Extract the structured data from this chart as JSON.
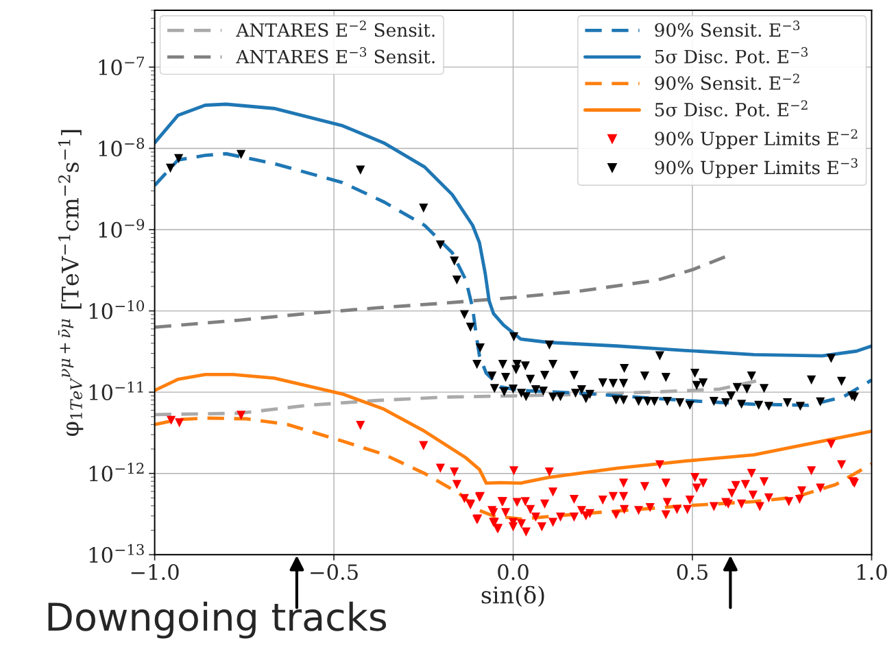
{
  "chart_data": {
    "type": "line",
    "xlabel": "sin(δ)",
    "ylabel": "φ$_{1TeV}$$^{νμ+ν̄μ}$ [TeV$^{−1}$cm$^{−2}$s$^{−1}$]",
    "log": "y",
    "grid": true,
    "legend": "top right",
    "xlim": [
      -1,
      1
    ],
    "xticks": [
      {
        "value": -1,
        "label": "−1.0"
      },
      {
        "value": -0.5,
        "label": "−0.5"
      },
      {
        "value": 0,
        "label": "0.0"
      },
      {
        "value": 0.5,
        "label": "0.5"
      },
      {
        "value": 1,
        "label": "1.0"
      }
    ],
    "ylim": [
      1e-13,
      5e-07
    ],
    "yticks": [
      {
        "value": 1e-13,
        "label": "10$^{−13}$"
      },
      {
        "value": 1e-12,
        "label": "10$^{−12}$"
      },
      {
        "value": 1e-11,
        "label": "10$^{−11}$"
      },
      {
        "value": 1e-10,
        "label": "10$^{−10}$"
      },
      {
        "value": 1e-09,
        "label": "10$^{−9}$"
      },
      {
        "value": 1e-08,
        "label": "10$^{−8}$"
      },
      {
        "value": 1e-07,
        "label": "10$^{−7}$"
      }
    ],
    "annotations": [
      "Downgoing tracks"
    ],
    "series": [
      {
        "name": "ANTARES E$^{−2}$ Sensit.",
        "line_style": "dashed",
        "color": "#aaaaaa",
        "x": [
          -1,
          -0.763,
          -0.572,
          -0.38,
          -0.189,
          0.0,
          0.193,
          0.384,
          0.576,
          0.69
        ],
        "values": [
          5.3e-12,
          5.5e-12,
          6.9e-12,
          7.9e-12,
          8.7e-12,
          9e-12,
          9.4e-12,
          1e-11,
          1.09e-11,
          1.41e-11
        ]
      },
      {
        "name": "ANTARES E$^{−3}$ Sensit.",
        "line_style": "dashed",
        "color": "#808080",
        "x": [
          -1,
          -0.763,
          -0.572,
          -0.38,
          -0.189,
          0.0,
          0.193,
          0.403,
          0.499,
          0.595
        ],
        "values": [
          6.3e-11,
          7.7e-11,
          9.3e-11,
          1.09e-10,
          1.25e-10,
          1.46e-10,
          1.77e-10,
          2.4e-10,
          3.2e-10,
          4.7e-10
        ]
      },
      {
        "name": "90% Sensit. E$^{−3}$",
        "line_style": "dashed",
        "color": "#1f77b4",
        "x": [
          -1,
          -0.935,
          -0.859,
          -0.801,
          -0.667,
          -0.476,
          -0.361,
          -0.247,
          -0.17,
          -0.132,
          -0.113,
          -0.103,
          -0.094,
          -0.075,
          -0.036,
          0.021,
          0.193,
          0.48,
          0.671,
          0.824,
          0.92,
          1.0
        ],
        "values": [
          3.5e-09,
          7.2e-09,
          8.2e-09,
          8.6e-09,
          6.5e-09,
          3.8e-09,
          2.2e-09,
          1.13e-09,
          5.2e-10,
          2.4e-10,
          1.09e-10,
          5e-11,
          2.8e-11,
          1.71e-11,
          1.16e-11,
          1.05e-11,
          9.7e-12,
          7.9e-12,
          7.1e-12,
          6.9e-12,
          8.7e-12,
          1.41e-11
        ]
      },
      {
        "name": "5σ Disc. Pot. E$^{−3}$",
        "line_style": "solid",
        "color": "#1f77b4",
        "x": [
          -1,
          -0.935,
          -0.859,
          -0.801,
          -0.667,
          -0.476,
          -0.361,
          -0.247,
          -0.17,
          -0.113,
          -0.094,
          -0.078,
          -0.067,
          -0.055,
          -0.027,
          0.021,
          0.098,
          0.289,
          0.48,
          0.671,
          0.862,
          0.958,
          1.0
        ],
        "values": [
          1.17e-08,
          2.55e-08,
          3.4e-08,
          3.5e-08,
          3.1e-08,
          1.9e-08,
          1.17e-08,
          5.9e-09,
          2.7e-09,
          1.13e-09,
          6.9e-10,
          2.9e-10,
          1.33e-10,
          9.3e-11,
          6.7e-11,
          4.5e-11,
          4.1e-11,
          3.7e-11,
          3.26e-11,
          2.9e-11,
          2.8e-11,
          3.2e-11,
          3.7e-11
        ]
      },
      {
        "name": "90% Sensit. E$^{−2}$",
        "line_style": "dashed",
        "color": "#ff7f0e",
        "x": [
          -1,
          -0.935,
          -0.859,
          -0.744,
          -0.629,
          -0.476,
          -0.361,
          -0.247,
          -0.151,
          -0.094,
          -0.055,
          0.021,
          0.193,
          0.48,
          0.671,
          0.786,
          0.9,
          1.0
        ],
        "values": [
          4e-12,
          4.6e-12,
          4.8e-12,
          4.7e-12,
          4e-12,
          2.5e-12,
          1.72e-12,
          1e-12,
          5.7e-13,
          3.5e-13,
          3e-13,
          2.75e-13,
          3.2e-13,
          4e-13,
          4.5e-13,
          5.1e-13,
          7.3e-13,
          1.31e-12
        ]
      },
      {
        "name": "5σ Disc. Pot. E$^{−2}$",
        "line_style": "solid",
        "color": "#ff7f0e",
        "x": [
          -1,
          -0.935,
          -0.859,
          -0.782,
          -0.667,
          -0.476,
          -0.361,
          -0.247,
          -0.132,
          -0.094,
          -0.075,
          -0.036,
          0.021,
          0.098,
          0.289,
          0.48,
          0.671,
          0.862,
          1.0
        ],
        "values": [
          1.05e-11,
          1.44e-11,
          1.65e-11,
          1.65e-11,
          1.49e-11,
          9.5e-12,
          6.2e-12,
          3.3e-12,
          1.56e-12,
          1.12e-12,
          7.6e-13,
          7.7e-13,
          7.6e-13,
          8.9e-13,
          1.16e-12,
          1.42e-12,
          1.69e-12,
          2.5e-12,
          3.3e-12
        ]
      },
      {
        "name": "90% Upper Limits E$^{−2}$",
        "type": "scatter",
        "marker": "triangle",
        "color": "#ff0000",
        "x": [
          -0.954,
          -0.931,
          -0.759,
          -0.426,
          -0.25,
          -0.203,
          -0.164,
          -0.157,
          -0.136,
          -0.119,
          -0.094,
          -0.099,
          -0.055,
          -0.042,
          -0.031,
          -0.055,
          0.002,
          0.101,
          0.409,
          0.887,
          0.916,
          0.832,
          0.507,
          0.53,
          0.665,
          0.7,
          0.308,
          0.426,
          0.367,
          0.648,
          0.621,
          0.512,
          0.948,
          0.952,
          0.111,
          -0.092,
          0.805,
          0.857,
          0.25,
          0.279,
          0.308,
          0.17,
          0.493,
          0.61,
          0.669,
          0.713,
          0.769,
          -0.029,
          0.011,
          0.034,
          0.088,
          0.43,
          0.593,
          0.637,
          0.799,
          -0.12,
          -0.059,
          -0.021,
          0.048,
          0.31,
          0.35,
          0.382,
          0.457,
          0.486,
          0.56,
          0.6,
          0.688,
          -0.101,
          -0.052,
          0.0,
          0.023,
          0.063,
          0.111,
          0.132,
          0.191,
          0.214,
          0.17,
          0.203,
          0.287,
          0.426,
          -0.044,
          0.036,
          0.08,
          0.0
        ],
        "values": [
          4.5e-12,
          4.2e-12,
          5.2e-12,
          3.9e-12,
          2.2e-12,
          1.16e-12,
          1.04e-12,
          7.3e-13,
          4.9e-13,
          4.1e-13,
          5.1e-13,
          2.75e-13,
          3.3e-13,
          2.1e-13,
          4.5e-13,
          2.5e-13,
          1.08e-12,
          1.04e-12,
          1.28e-12,
          2.3e-12,
          1.28e-12,
          1.08e-12,
          8.9e-13,
          7.6e-13,
          1e-12,
          7.9e-13,
          7.6e-13,
          7.6e-13,
          6.9e-13,
          7.3e-13,
          7.1e-13,
          6.6e-13,
          7.9e-13,
          7.6e-13,
          5.9e-13,
          5.2e-13,
          6.1e-13,
          6.6e-13,
          4.7e-13,
          5.2e-13,
          5.2e-13,
          4.8e-13,
          4.7e-13,
          5.7e-13,
          5.4e-13,
          5e-13,
          4.5e-13,
          4.5e-13,
          4.4e-13,
          4.5e-13,
          4.2e-13,
          4.4e-13,
          4.4e-13,
          4.2e-13,
          4.8e-13,
          4.2e-13,
          3.5e-13,
          3.3e-13,
          3.6e-13,
          3.6e-13,
          3.5e-13,
          3.8e-13,
          3.6e-13,
          3.6e-13,
          3.9e-13,
          4.2e-13,
          3.9e-13,
          2.7e-13,
          2.5e-13,
          2.5e-13,
          2.4e-13,
          2.9e-13,
          2.5e-13,
          2.9e-13,
          3.5e-13,
          3.2e-13,
          2.9e-13,
          3e-13,
          3.1e-13,
          3.1e-13,
          2.1e-13,
          1.9e-13,
          2.2e-13,
          2.2e-13
        ]
      },
      {
        "name": "90% Upper Limits E$^{−3}$",
        "type": "scatter",
        "marker": "triangle",
        "color": "#000000",
        "x": [
          -0.956,
          -0.933,
          -0.759,
          -0.426,
          -0.25,
          -0.203,
          -0.164,
          -0.157,
          -0.136,
          -0.119,
          -0.092,
          -0.101,
          0.002,
          0.101,
          -0.029,
          0.011,
          0.034,
          -0.059,
          -0.021,
          0.008,
          0.048,
          0.088,
          0.111,
          0.17,
          0.31,
          0.409,
          0.367,
          0.426,
          0.507,
          0.665,
          0.887,
          0.832,
          0.916,
          0.25,
          0.279,
          0.308,
          0.53,
          0.512,
          0.7,
          0.625,
          -0.052,
          0.0,
          0.063,
          0.084,
          0.191,
          0.174,
          0.214,
          0.652,
          -0.025,
          0.023,
          0.036,
          0.111,
          0.132,
          0.203,
          0.287,
          0.308,
          0.35,
          0.375,
          0.394,
          0.43,
          0.465,
          0.493,
          0.56,
          0.593,
          0.608,
          0.637,
          0.685,
          0.713,
          0.765,
          0.801,
          0.857,
          0.945,
          0.952
        ],
        "values": [
          5.7e-09,
          7.5e-09,
          8.4e-09,
          5.4e-09,
          1.84e-09,
          6.5e-10,
          4.1e-10,
          2.4e-10,
          9e-11,
          6.3e-11,
          3.5e-11,
          2.2e-11,
          4.8e-11,
          3.8e-11,
          2.2e-11,
          2.2e-11,
          2.1e-11,
          1.58e-11,
          1.52e-11,
          1.89e-11,
          1.44e-11,
          1.61e-11,
          2.2e-11,
          1.61e-11,
          1.96e-11,
          2.8e-11,
          1.58e-11,
          1.52e-11,
          1.71e-11,
          1.58e-11,
          2.6e-11,
          1.41e-11,
          1.36e-11,
          1.3e-11,
          1.28e-11,
          1.28e-11,
          1.3e-11,
          1.21e-11,
          1.11e-11,
          1.14e-11,
          1.11e-11,
          1.09e-11,
          1.07e-11,
          1.03e-11,
          1.07e-11,
          9.7e-12,
          9.4e-12,
          1.09e-11,
          1.01e-11,
          9.7e-12,
          8.8e-12,
          8.7e-12,
          8.8e-12,
          8.3e-12,
          8e-12,
          8e-12,
          7.7e-12,
          7.7e-12,
          7.7e-12,
          7.7e-12,
          7.4e-12,
          6.9e-12,
          7.7e-12,
          7.4e-12,
          9e-12,
          7.1e-12,
          6.9e-12,
          6.7e-12,
          7.4e-12,
          6.7e-12,
          7.6e-12,
          9e-12,
          8.7e-12
        ]
      }
    ]
  }
}
